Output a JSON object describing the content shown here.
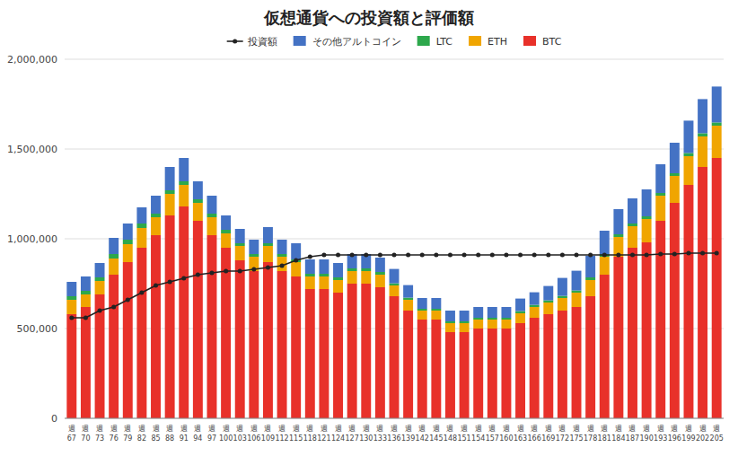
{
  "chart_data": {
    "type": "bar",
    "title": "仮想通貨への投資額と評価額",
    "stacked": true,
    "grid": true,
    "legend": "top",
    "categories": [
      "週\n67",
      "週\n70",
      "週\n73",
      "週\n76",
      "週\n79",
      "週\n82",
      "週\n85",
      "週\n88",
      "週\n91",
      "週\n94",
      "週\n97",
      "週\n100",
      "週\n103",
      "週\n106",
      "週\n109",
      "週\n112",
      "週\n115",
      "週\n118",
      "週\n121",
      "週\n124",
      "週\n127",
      "週\n130",
      "週\n133",
      "週\n136",
      "週\n139",
      "週\n142",
      "週\n145",
      "週\n148",
      "週\n151",
      "週\n154",
      "週\n157",
      "週\n160",
      "週\n163",
      "週\n166",
      "週\n169",
      "週\n172",
      "週\n175",
      "週\n178",
      "週\n181",
      "週\n184",
      "週\n187",
      "週\n190",
      "週\n193",
      "週\n196",
      "週\n199",
      "週\n202",
      "週\n205"
    ],
    "ylim": [
      0,
      2000000
    ],
    "yticks": [
      0,
      {
        "value": 500000,
        "label": "500,000"
      },
      {
        "value": 1000000,
        "label": "1,000,000"
      },
      {
        "value": 1500000,
        "label": "1,500,000"
      },
      {
        "value": 2000000,
        "label": "2,000,000"
      }
    ],
    "series": [
      {
        "name": "BTC",
        "type": "bar",
        "color": "#e8312a",
        "values": [
          580000,
          620000,
          690000,
          800000,
          870000,
          950000,
          1020000,
          1130000,
          1180000,
          1100000,
          1020000,
          950000,
          880000,
          820000,
          870000,
          820000,
          790000,
          720000,
          720000,
          700000,
          750000,
          750000,
          730000,
          680000,
          600000,
          550000,
          550000,
          480000,
          480000,
          500000,
          500000,
          500000,
          530000,
          560000,
          580000,
          600000,
          620000,
          680000,
          800000,
          900000,
          950000,
          980000,
          1100000,
          1200000,
          1300000,
          1400000,
          1450000
        ]
      },
      {
        "name": "ETH",
        "type": "bar",
        "color": "#f0a500",
        "values": [
          80000,
          70000,
          75000,
          90000,
          100000,
          110000,
          100000,
          120000,
          120000,
          100000,
          100000,
          80000,
          80000,
          80000,
          90000,
          80000,
          80000,
          70000,
          70000,
          70000,
          70000,
          70000,
          70000,
          60000,
          60000,
          50000,
          50000,
          50000,
          50000,
          50000,
          50000,
          50000,
          55000,
          60000,
          65000,
          70000,
          80000,
          90000,
          100000,
          110000,
          120000,
          130000,
          140000,
          150000,
          160000,
          170000,
          180000
        ]
      },
      {
        "name": "LTC",
        "type": "bar",
        "color": "#2da84c",
        "values": [
          20000,
          20000,
          20000,
          25000,
          25000,
          25000,
          20000,
          20000,
          20000,
          20000,
          20000,
          20000,
          15000,
          15000,
          15000,
          15000,
          15000,
          15000,
          15000,
          15000,
          15000,
          15000,
          15000,
          12000,
          12000,
          10000,
          10000,
          10000,
          10000,
          10000,
          10000,
          10000,
          12000,
          12000,
          12000,
          12000,
          12000,
          15000,
          15000,
          15000,
          15000,
          15000,
          15000,
          15000,
          18000,
          18000,
          18000
        ]
      },
      {
        "name": "その他アルトコイン",
        "type": "bar",
        "color": "#4472c4",
        "values": [
          80000,
          80000,
          80000,
          90000,
          90000,
          90000,
          100000,
          130000,
          130000,
          100000,
          100000,
          80000,
          80000,
          80000,
          90000,
          80000,
          90000,
          80000,
          80000,
          80000,
          80000,
          80000,
          80000,
          80000,
          70000,
          60000,
          60000,
          60000,
          60000,
          60000,
          60000,
          60000,
          70000,
          70000,
          80000,
          100000,
          110000,
          120000,
          130000,
          140000,
          140000,
          150000,
          160000,
          170000,
          180000,
          190000,
          200000
        ]
      },
      {
        "name": "投資額",
        "type": "line",
        "color": "#222222",
        "marker": "circle",
        "values": [
          560000,
          560000,
          600000,
          620000,
          660000,
          700000,
          740000,
          760000,
          780000,
          800000,
          810000,
          820000,
          820000,
          830000,
          840000,
          850000,
          880000,
          900000,
          910000,
          910000,
          910000,
          910000,
          910000,
          910000,
          910000,
          910000,
          910000,
          910000,
          910000,
          910000,
          910000,
          910000,
          910000,
          910000,
          910000,
          910000,
          910000,
          910000,
          910000,
          910000,
          910000,
          910000,
          915000,
          915000,
          920000,
          920000,
          920000
        ]
      }
    ]
  }
}
